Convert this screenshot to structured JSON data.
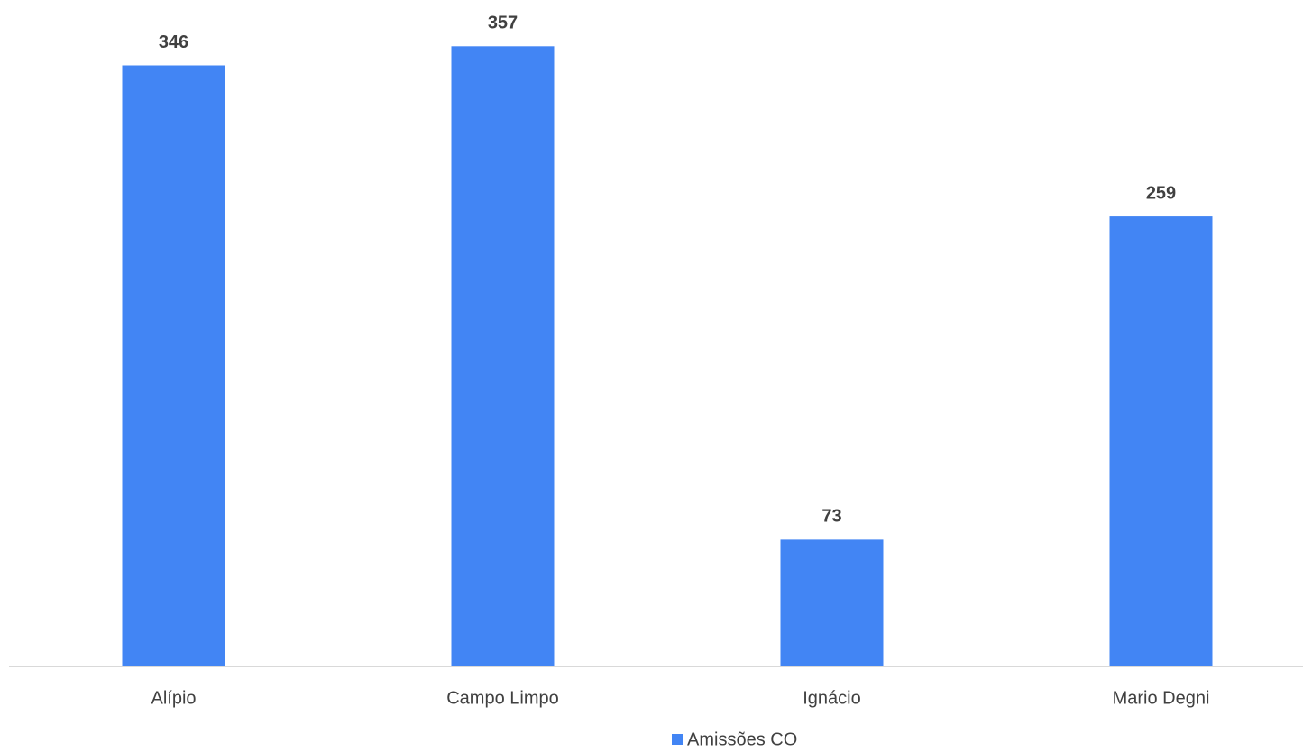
{
  "chart_data": {
    "type": "bar",
    "categories": [
      "Alípio",
      "Campo Limpo",
      "Ignácio",
      "Mario Degni"
    ],
    "series": [
      {
        "name": "Amissões CO",
        "color": "#4285f4",
        "values": [
          346,
          357,
          73,
          259
        ]
      }
    ],
    "ylim": [
      0,
      380
    ],
    "legend": "bottom"
  }
}
